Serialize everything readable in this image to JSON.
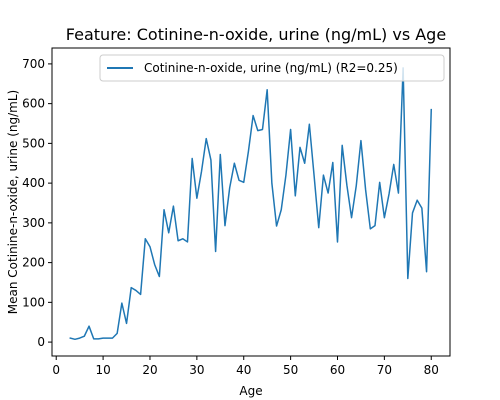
{
  "chart_data": {
    "type": "line",
    "title": "Feature: Cotinine-n-oxide, urine (ng/mL) vs Age",
    "xlabel": "Age",
    "ylabel": "Mean Cotinine-n-oxide, urine (ng/mL)",
    "xlim": [
      -0.9,
      84
    ],
    "ylim": [
      -35,
      740
    ],
    "xticks": [
      0,
      10,
      20,
      30,
      40,
      50,
      60,
      70,
      80
    ],
    "yticks": [
      0,
      100,
      200,
      300,
      400,
      500,
      600,
      700
    ],
    "grid": false,
    "legend_position": "top-right",
    "series": [
      {
        "name": "Cotinine-n-oxide, urine (ng/mL) (R2=0.25)",
        "color": "#1f77b4",
        "x": [
          3,
          4,
          5,
          6,
          7,
          8,
          9,
          10,
          11,
          12,
          13,
          14,
          15,
          16,
          17,
          18,
          19,
          20,
          21,
          22,
          23,
          24,
          25,
          26,
          27,
          28,
          29,
          30,
          31,
          32,
          33,
          34,
          35,
          36,
          37,
          38,
          39,
          40,
          41,
          42,
          43,
          44,
          45,
          46,
          47,
          48,
          49,
          50,
          51,
          52,
          53,
          54,
          55,
          56,
          57,
          58,
          59,
          60,
          61,
          62,
          63,
          64,
          65,
          66,
          67,
          68,
          69,
          70,
          71,
          72,
          73,
          74,
          75,
          76,
          77,
          78,
          79,
          80
        ],
        "y": [
          10,
          7,
          10,
          15,
          40,
          8,
          8,
          10,
          10,
          10,
          22,
          98,
          47,
          137,
          130,
          120,
          260,
          240,
          195,
          165,
          333,
          275,
          342,
          255,
          260,
          252,
          462,
          362,
          430,
          512,
          458,
          228,
          472,
          293,
          388,
          450,
          407,
          402,
          480,
          570,
          532,
          535,
          635,
          400,
          292,
          333,
          420,
          535,
          368,
          490,
          450,
          548,
          420,
          288,
          420,
          375,
          452,
          252,
          495,
          395,
          313,
          393,
          507,
          383,
          285,
          293,
          402,
          313,
          373,
          447,
          375,
          690,
          160,
          325,
          357,
          337,
          177,
          585
        ]
      }
    ]
  }
}
